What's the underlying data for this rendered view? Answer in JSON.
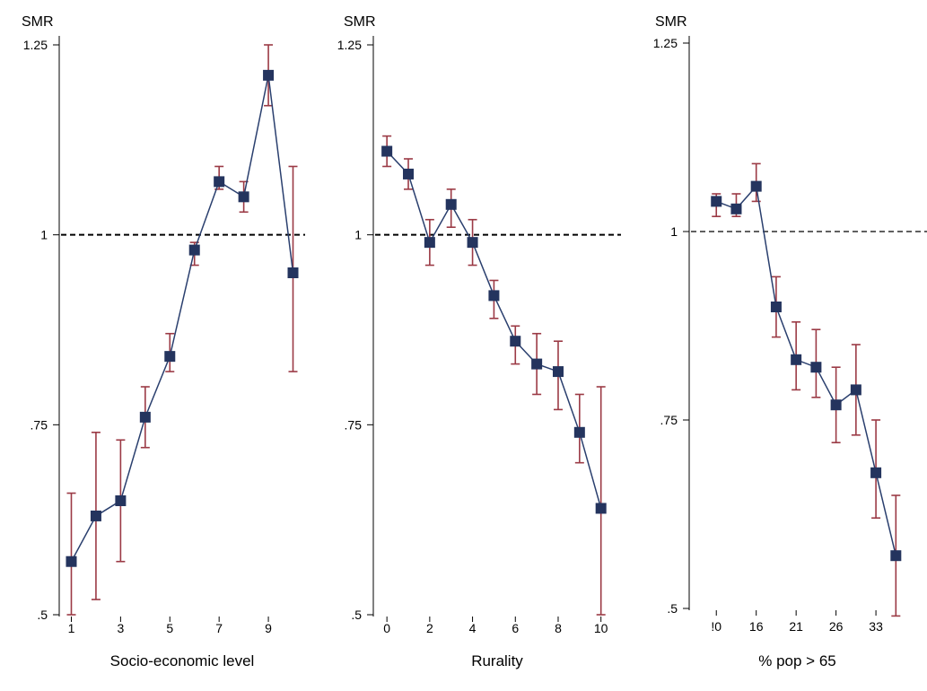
{
  "colors": {
    "marker": "#24345e",
    "line": "#2a3f6e",
    "errorbar": "#9b3a45",
    "reference": "#000000"
  },
  "chart_data": [
    {
      "type": "line",
      "ylabel": "SMR",
      "xlabel": "Socio-economic level",
      "ylim": [
        0.5,
        1.25
      ],
      "yticks": [
        {
          "value": 0.5,
          "label": ".5"
        },
        {
          "value": 0.75,
          "label": ".75"
        },
        {
          "value": 1,
          "label": "1"
        },
        {
          "value": 1.25,
          "label": "1.25"
        }
      ],
      "xlim": [
        0.8,
        10.2
      ],
      "xticks": [
        {
          "value": 1,
          "label": "1"
        },
        {
          "value": 3,
          "label": "3"
        },
        {
          "value": 5,
          "label": "5"
        },
        {
          "value": 7,
          "label": "7"
        },
        {
          "value": 9,
          "label": "9"
        }
      ],
      "reference_line": 1,
      "x": [
        1,
        2,
        3,
        4,
        5,
        6,
        7,
        8,
        9,
        10
      ],
      "y": [
        0.57,
        0.63,
        0.65,
        0.76,
        0.84,
        0.98,
        1.07,
        1.05,
        1.21,
        0.95
      ],
      "lower": [
        0.5,
        0.52,
        0.57,
        0.72,
        0.82,
        0.96,
        1.06,
        1.03,
        1.17,
        0.82
      ],
      "upper": [
        0.66,
        0.74,
        0.73,
        0.8,
        0.87,
        0.99,
        1.09,
        1.07,
        1.25,
        1.09
      ]
    },
    {
      "type": "line",
      "ylabel": "SMR",
      "xlabel": "Rurality",
      "ylim": [
        0.5,
        1.25
      ],
      "yticks": [
        {
          "value": 0.5,
          "label": ".5"
        },
        {
          "value": 0.75,
          "label": ".75"
        },
        {
          "value": 1,
          "label": "1"
        },
        {
          "value": 1.25,
          "label": "1.25"
        }
      ],
      "xlim": [
        -0.3,
        10.6
      ],
      "xticks": [
        {
          "value": 0,
          "label": "0"
        },
        {
          "value": 2,
          "label": "2"
        },
        {
          "value": 4,
          "label": "4"
        },
        {
          "value": 6,
          "label": "6"
        },
        {
          "value": 8,
          "label": "8"
        },
        {
          "value": 10,
          "label": "10"
        }
      ],
      "reference_line": 1,
      "x": [
        0,
        1,
        2,
        3,
        4,
        5,
        6,
        7,
        8,
        9,
        10
      ],
      "y": [
        1.11,
        1.08,
        0.99,
        1.04,
        0.99,
        0.92,
        0.86,
        0.83,
        0.82,
        0.74,
        0.64
      ],
      "lower": [
        1.09,
        1.06,
        0.96,
        1.01,
        0.96,
        0.89,
        0.83,
        0.79,
        0.77,
        0.7,
        0.5
      ],
      "upper": [
        1.13,
        1.1,
        1.02,
        1.06,
        1.02,
        0.94,
        0.88,
        0.87,
        0.86,
        0.79,
        0.8
      ]
    },
    {
      "type": "line",
      "ylabel": "SMR",
      "xlabel": "% pop > 65",
      "ylim": [
        0.5,
        1.25
      ],
      "yticks": [
        {
          "value": 0.5,
          "label": ".5"
        },
        {
          "value": 0.75,
          "label": ".75"
        },
        {
          "value": 1,
          "label": "1"
        },
        {
          "value": 1.25,
          "label": "1.25"
        }
      ],
      "xlim": [
        0,
        11.2
      ],
      "xticks": [
        {
          "value": 1,
          "label": "!0"
        },
        {
          "value": 3,
          "label": "16"
        },
        {
          "value": 5,
          "label": "21"
        },
        {
          "value": 7,
          "label": "26"
        },
        {
          "value": 9,
          "label": "33"
        }
      ],
      "reference_line": 1,
      "x": [
        1,
        2,
        3,
        4,
        5,
        6,
        7,
        8,
        9,
        10
      ],
      "y": [
        1.04,
        1.03,
        1.06,
        0.9,
        0.83,
        0.82,
        0.77,
        0.79,
        0.68,
        0.57
      ],
      "lower": [
        1.02,
        1.02,
        1.04,
        0.86,
        0.79,
        0.78,
        0.72,
        0.73,
        0.62,
        0.49
      ],
      "upper": [
        1.05,
        1.05,
        1.09,
        0.94,
        0.88,
        0.87,
        0.82,
        0.85,
        0.75,
        0.65
      ]
    }
  ]
}
